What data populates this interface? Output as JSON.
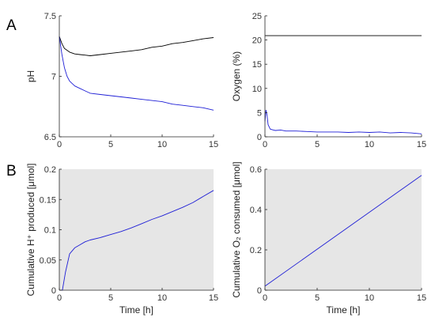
{
  "panel_labels": [
    "A",
    "B"
  ],
  "colors": {
    "control": "#000000",
    "treated": "#1f1fd6",
    "plot_bg_B": "#e6e6e6",
    "axis": "#262626"
  },
  "chart_data": [
    {
      "id": "ph",
      "type": "line",
      "title": "",
      "xlabel": "",
      "ylabel": "pH",
      "xlim": [
        0,
        15
      ],
      "ylim": [
        6.5,
        7.5
      ],
      "xticks": [
        "0",
        "5",
        "10",
        "15"
      ],
      "yticks": [
        "6.5",
        "7",
        "7.5"
      ],
      "grid": false,
      "shaded_background": false,
      "series": [
        {
          "color": "#000000",
          "x": [
            0,
            0.25,
            0.5,
            1,
            1.5,
            2,
            2.5,
            3,
            4,
            5,
            6,
            7,
            8,
            9,
            10,
            11,
            12,
            13,
            14,
            15
          ],
          "y": [
            7.33,
            7.27,
            7.23,
            7.2,
            7.185,
            7.18,
            7.175,
            7.17,
            7.18,
            7.19,
            7.2,
            7.21,
            7.22,
            7.24,
            7.25,
            7.27,
            7.28,
            7.295,
            7.31,
            7.32
          ]
        },
        {
          "color": "#1f1fd6",
          "x": [
            0,
            0.25,
            0.5,
            0.75,
            1,
            1.5,
            2,
            2.5,
            3,
            4,
            5,
            6,
            7,
            8,
            9,
            10,
            11,
            12,
            13,
            14,
            15
          ],
          "y": [
            7.33,
            7.18,
            7.07,
            7.0,
            6.96,
            6.92,
            6.9,
            6.88,
            6.86,
            6.85,
            6.84,
            6.83,
            6.82,
            6.81,
            6.8,
            6.79,
            6.77,
            6.76,
            6.75,
            6.74,
            6.72
          ]
        }
      ]
    },
    {
      "id": "oxygen",
      "type": "line",
      "title": "",
      "xlabel": "",
      "ylabel": "Oxygen (%)",
      "xlim": [
        0,
        15
      ],
      "ylim": [
        0,
        25
      ],
      "xticks": [
        "0",
        "5",
        "10",
        "15"
      ],
      "yticks": [
        "0",
        "5",
        "10",
        "15",
        "20",
        "25"
      ],
      "grid": false,
      "shaded_background": false,
      "series": [
        {
          "color": "#000000",
          "x": [
            0,
            15
          ],
          "y": [
            20.9,
            20.9
          ]
        },
        {
          "color": "#1f1fd6",
          "x": [
            0,
            0.1,
            0.2,
            0.3,
            0.5,
            0.8,
            1,
            1.5,
            2,
            3,
            4,
            5,
            6,
            7,
            8,
            9,
            10,
            11,
            12,
            13,
            14,
            15
          ],
          "y": [
            3.2,
            5.5,
            4.5,
            2.5,
            1.6,
            1.4,
            1.3,
            1.4,
            1.2,
            1.2,
            1.1,
            1.0,
            1.0,
            1.0,
            0.9,
            1.0,
            0.9,
            1.0,
            0.8,
            0.9,
            0.8,
            0.6
          ]
        }
      ]
    },
    {
      "id": "h_produced",
      "type": "line",
      "title": "",
      "xlabel": "Time [h]",
      "ylabel": "Cumulative H⁺ produced [μmol]",
      "xlim": [
        0,
        15
      ],
      "ylim": [
        0,
        0.2
      ],
      "xticks": [
        "0",
        "5",
        "10",
        "15"
      ],
      "yticks": [
        "0",
        "0.05",
        "0.1",
        "0.15",
        "0.2"
      ],
      "grid": false,
      "shaded_background": true,
      "series": [
        {
          "color": "#1f1fd6",
          "x": [
            0,
            0.3,
            0.6,
            1,
            1.5,
            2,
            2.5,
            3,
            4,
            5,
            6,
            7,
            8,
            9,
            10,
            11,
            12,
            13,
            14,
            15
          ],
          "y": [
            0,
            0,
            0.03,
            0.06,
            0.07,
            0.075,
            0.08,
            0.083,
            0.087,
            0.092,
            0.097,
            0.103,
            0.11,
            0.117,
            0.123,
            0.13,
            0.137,
            0.145,
            0.155,
            0.165
          ]
        }
      ]
    },
    {
      "id": "o2_consumed",
      "type": "line",
      "title": "",
      "xlabel": "Time [h]",
      "ylabel": "Cumulative O₂ consumed [μmol]",
      "xlim": [
        0,
        15
      ],
      "ylim": [
        0,
        0.6
      ],
      "xticks": [
        "0",
        "5",
        "10",
        "15"
      ],
      "yticks": [
        "0",
        "0.2",
        "0.4",
        "0.6"
      ],
      "grid": false,
      "shaded_background": true,
      "series": [
        {
          "color": "#1f1fd6",
          "x": [
            0,
            15
          ],
          "y": [
            0.02,
            0.57
          ]
        }
      ]
    }
  ]
}
